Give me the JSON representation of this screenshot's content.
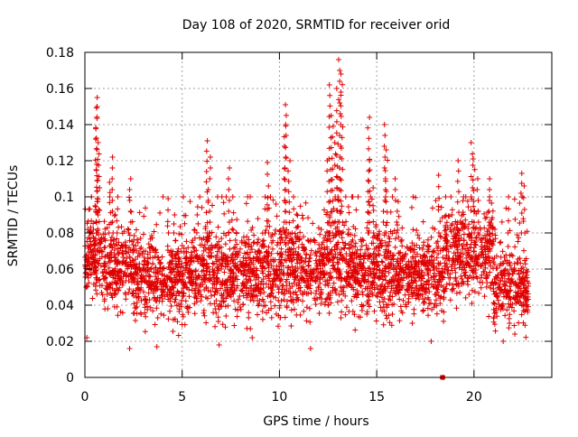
{
  "chart_data": {
    "type": "scatter",
    "title": "Day 108 of 2020, SRMTID for receiver orid",
    "xlabel": "GPS time / hours",
    "ylabel": "SRMTID / TECUs",
    "xlim": [
      0,
      24.0
    ],
    "ylim": [
      0,
      0.18
    ],
    "x_ticks": [
      0,
      5,
      10,
      15,
      20
    ],
    "x_tick_labels": [
      "0",
      "5",
      "10",
      "15",
      "20"
    ],
    "y_ticks": [
      0,
      0.02,
      0.04,
      0.06,
      0.08,
      0.1,
      0.12,
      0.14,
      0.16,
      0.18
    ],
    "y_tick_labels": [
      "0",
      "0.02",
      "0.04",
      "0.06",
      "0.08",
      "0.1",
      "0.12",
      "0.14",
      "0.16",
      "0.18"
    ],
    "grid": true,
    "marker": "plus",
    "series": [
      {
        "name": "SRMTID",
        "color": "#e00000",
        "x_range": [
          0.0,
          22.8
        ],
        "density_profile": [
          {
            "x": [
              0.0,
              1.0
            ],
            "center": 0.065,
            "spread": 0.015,
            "spikes": [
              [
                0.6,
                0.155
              ],
              [
                0.6,
                0.15
              ],
              [
                0.7,
                0.13
              ],
              [
                0.6,
                0.118
              ],
              [
                0.3,
                0.1
              ],
              [
                0.2,
                0.093
              ],
              [
                0.1,
                0.022
              ]
            ]
          },
          {
            "x": [
              1.0,
              2.5
            ],
            "center": 0.06,
            "spread": 0.014,
            "spikes": [
              [
                1.4,
                0.122
              ],
              [
                1.3,
                0.108
              ],
              [
                1.7,
                0.1
              ],
              [
                2.3,
                0.11
              ],
              [
                2.3,
                0.016
              ]
            ]
          },
          {
            "x": [
              2.5,
              5.0
            ],
            "center": 0.055,
            "spread": 0.016,
            "spikes": [
              [
                4.3,
                0.099
              ],
              [
                4.6,
                0.09
              ],
              [
                3.7,
                0.017
              ]
            ]
          },
          {
            "x": [
              5.0,
              7.5
            ],
            "center": 0.057,
            "spread": 0.016,
            "spikes": [
              [
                6.3,
                0.131
              ],
              [
                6.4,
                0.122
              ],
              [
                7.4,
                0.116
              ],
              [
                6.9,
                0.018
              ]
            ]
          },
          {
            "x": [
              7.5,
              10.0
            ],
            "center": 0.058,
            "spread": 0.016,
            "spikes": [
              [
                9.4,
                0.119
              ],
              [
                9.3,
                0.1
              ],
              [
                8.6,
                0.022
              ]
            ]
          },
          {
            "x": [
              10.0,
              12.5
            ],
            "center": 0.06,
            "spread": 0.017,
            "spikes": [
              [
                10.3,
                0.151
              ],
              [
                10.3,
                0.14
              ],
              [
                10.5,
                0.12
              ],
              [
                10.7,
                0.1
              ],
              [
                11.6,
                0.016
              ]
            ]
          },
          {
            "x": [
              12.5,
              14.0
            ],
            "center": 0.062,
            "spread": 0.018,
            "spikes": [
              [
                13.1,
                0.176
              ],
              [
                13.2,
                0.168
              ],
              [
                13.0,
                0.16
              ],
              [
                12.6,
                0.162
              ],
              [
                12.7,
                0.145
              ],
              [
                12.9,
                0.13
              ],
              [
                12.5,
                0.12
              ]
            ]
          },
          {
            "x": [
              14.0,
              16.0
            ],
            "center": 0.058,
            "spread": 0.016,
            "spikes": [
              [
                14.6,
                0.144
              ],
              [
                14.6,
                0.12
              ],
              [
                15.4,
                0.14
              ],
              [
                15.5,
                0.126
              ],
              [
                14.8,
                0.105
              ],
              [
                16.0,
                0.11
              ]
            ]
          },
          {
            "x": [
              16.0,
              18.5
            ],
            "center": 0.057,
            "spread": 0.014,
            "spikes": [
              [
                17.8,
                0.02
              ],
              [
                18.2,
                0.112
              ],
              [
                18.4,
                0.0
              ]
            ]
          },
          {
            "x": [
              18.5,
              21.0
            ],
            "center": 0.068,
            "spread": 0.016,
            "spikes": [
              [
                19.9,
                0.13
              ],
              [
                20.0,
                0.121
              ],
              [
                20.2,
                0.11
              ],
              [
                19.2,
                0.12
              ],
              [
                20.8,
                0.11
              ]
            ]
          },
          {
            "x": [
              21.0,
              22.8
            ],
            "center": 0.05,
            "spread": 0.014,
            "spikes": [
              [
                22.4,
                0.113
              ],
              [
                22.6,
                0.106
              ],
              [
                21.8,
                0.1
              ],
              [
                21.5,
                0.02
              ],
              [
                22.1,
                0.024
              ]
            ]
          }
        ],
        "zero_markers": [
          18.35,
          18.38,
          18.42
        ]
      }
    ]
  }
}
